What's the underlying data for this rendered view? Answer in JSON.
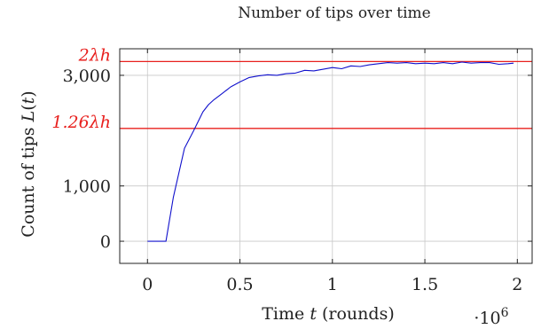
{
  "chart_data": {
    "type": "line",
    "title": "Number of tips over time",
    "xlabel": "Time t (rounds)",
    "ylabel": "Count of tips L(t)",
    "x_multiplier": "·10^6",
    "xlim": [
      -0.15,
      2.08
    ],
    "ylim": [
      -400,
      3480
    ],
    "x_ticks": [
      0,
      0.5,
      1,
      1.5,
      2
    ],
    "x_tick_labels": [
      "0",
      "0.5",
      "1",
      "1.5",
      "2"
    ],
    "y_ticks": [
      0,
      1000,
      3000
    ],
    "y_tick_labels": [
      "0",
      "1,000",
      "3,000"
    ],
    "grid": true,
    "reference_lines": [
      {
        "label": "2λh",
        "y": 3250,
        "color": "#e8201e"
      },
      {
        "label": "1.26λh",
        "y": 2040,
        "color": "#e8201e"
      }
    ],
    "series": [
      {
        "color": "#1010cc",
        "x": [
          0,
          0.1,
          0.14,
          0.2,
          0.25,
          0.3,
          0.33,
          0.36,
          0.4,
          0.45,
          0.5,
          0.55,
          0.6,
          0.65,
          0.7,
          0.75,
          0.8,
          0.85,
          0.9,
          0.95,
          1.0,
          1.05,
          1.1,
          1.15,
          1.2,
          1.25,
          1.3,
          1.35,
          1.4,
          1.45,
          1.5,
          1.55,
          1.6,
          1.65,
          1.7,
          1.75,
          1.8,
          1.85,
          1.9,
          1.95,
          1.98
        ],
        "y": [
          0,
          0,
          800,
          1680,
          2000,
          2340,
          2470,
          2560,
          2660,
          2790,
          2880,
          2960,
          2990,
          3010,
          3000,
          3030,
          3040,
          3090,
          3080,
          3110,
          3140,
          3120,
          3170,
          3160,
          3190,
          3210,
          3230,
          3220,
          3230,
          3210,
          3220,
          3210,
          3230,
          3210,
          3240,
          3220,
          3230,
          3230,
          3200,
          3210,
          3220
        ]
      }
    ]
  }
}
